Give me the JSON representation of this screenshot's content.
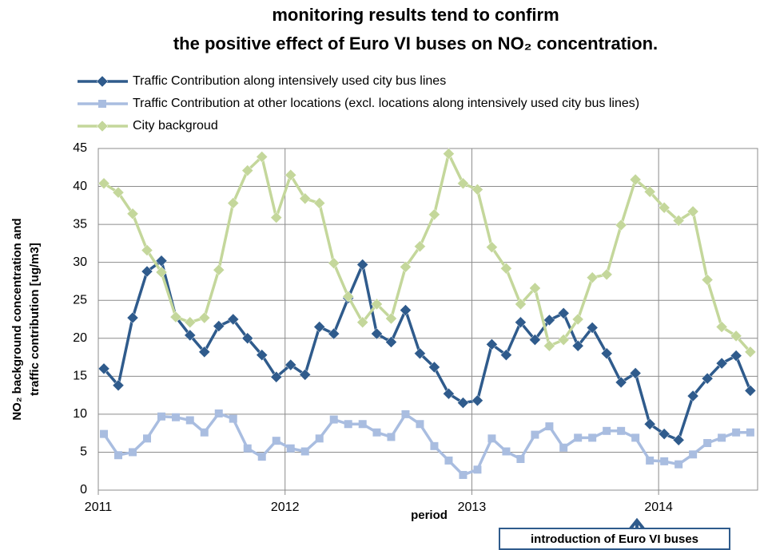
{
  "chart_data": {
    "type": "line",
    "title": [
      "monitoring results tend to confirm",
      "the positive effect of Euro VI buses on NO₂ concentration."
    ],
    "x_label": "period",
    "y_label": [
      "NO₂ background concentration and",
      "traffic contribution  [ug/m3]"
    ],
    "annotation": "introduction of Euro VI buses",
    "x": [
      2011.03,
      2011.107,
      2011.184,
      2011.261,
      2011.338,
      2011.415,
      2011.491,
      2011.568,
      2011.645,
      2011.722,
      2011.799,
      2011.876,
      2011.953,
      2012.03,
      2012.107,
      2012.184,
      2012.261,
      2012.338,
      2012.415,
      2012.491,
      2012.568,
      2012.645,
      2012.722,
      2012.799,
      2012.876,
      2012.953,
      2013.03,
      2013.107,
      2013.184,
      2013.261,
      2013.338,
      2013.415,
      2013.491,
      2013.568,
      2013.645,
      2013.722,
      2013.799,
      2013.876,
      2013.953,
      2014.03,
      2014.107,
      2014.184,
      2014.261,
      2014.338,
      2014.415,
      2014.491
    ],
    "series": [
      {
        "name": "Traffic Contribution along intensively used city bus lines",
        "color": "#2f5b8c",
        "marker": "diamond",
        "values": [
          16.0,
          13.8,
          22.7,
          28.8,
          30.2,
          22.8,
          20.4,
          18.2,
          21.6,
          22.5,
          20.0,
          17.8,
          14.9,
          16.5,
          15.2,
          21.5,
          20.6,
          25.3,
          29.7,
          20.6,
          19.5,
          23.7,
          18.0,
          16.2,
          12.7,
          11.5,
          11.8,
          19.2,
          17.8,
          22.1,
          19.8,
          22.4,
          23.3,
          19.0,
          21.4,
          18.0,
          14.2,
          15.4,
          8.7,
          7.4,
          6.6,
          12.4,
          14.7,
          16.7,
          17.7,
          13.1
        ]
      },
      {
        "name": "Traffic Contribution at other locations (excl. locations along intensively used city bus lines)",
        "color": "#a9bde0",
        "marker": "square",
        "values": [
          7.4,
          4.6,
          5.0,
          6.8,
          9.7,
          9.6,
          9.2,
          7.6,
          10.1,
          9.4,
          5.5,
          4.4,
          6.5,
          5.5,
          5.1,
          6.8,
          9.3,
          8.7,
          8.7,
          7.6,
          7.0,
          10.0,
          8.7,
          5.8,
          3.9,
          2.0,
          2.7,
          6.8,
          5.1,
          4.1,
          7.3,
          8.4,
          5.6,
          6.9,
          6.9,
          7.8,
          7.8,
          6.9,
          3.9,
          3.8,
          3.4,
          4.7,
          6.2,
          6.9,
          7.6,
          7.6
        ]
      },
      {
        "name": "City backgroud",
        "color": "#c4d79b",
        "marker": "diamond",
        "values": [
          40.4,
          39.2,
          36.4,
          31.6,
          28.7,
          22.8,
          22.1,
          22.7,
          29.0,
          37.8,
          42.1,
          43.9,
          35.9,
          41.5,
          38.4,
          37.8,
          29.9,
          25.5,
          22.1,
          24.5,
          22.6,
          29.4,
          32.1,
          36.3,
          44.3,
          40.4,
          39.6,
          32.0,
          29.2,
          24.5,
          26.6,
          19.0,
          19.8,
          22.5,
          28.0,
          28.4,
          34.9,
          40.9,
          39.3,
          37.2,
          35.5,
          36.7,
          27.7,
          21.5,
          20.3,
          18.2
        ]
      }
    ],
    "xlim": [
      2011,
      2014.53
    ],
    "xticks": [
      2011,
      2012,
      2013,
      2014
    ],
    "ylim": [
      0,
      45
    ],
    "yticks": [
      0,
      5,
      10,
      15,
      20,
      25,
      30,
      35,
      40,
      45
    ],
    "grid": true,
    "legend": "top"
  }
}
